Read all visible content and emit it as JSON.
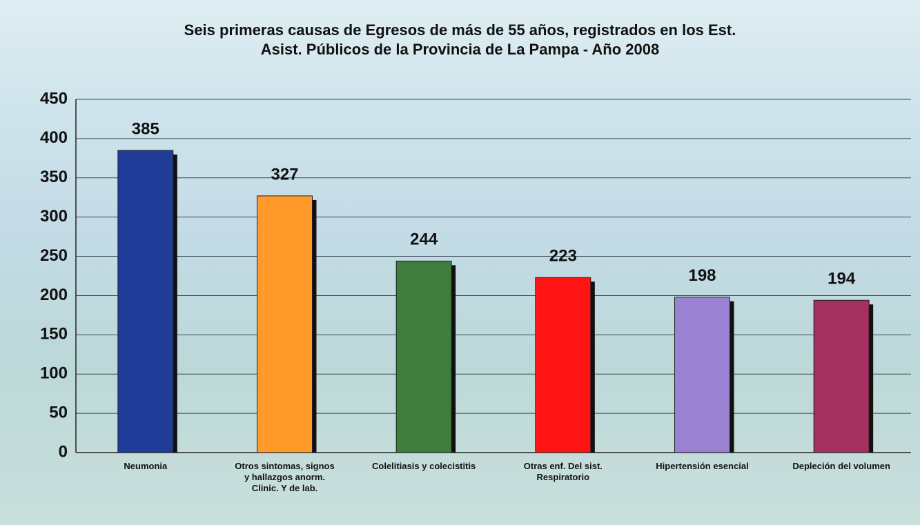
{
  "chart_data": {
    "type": "bar",
    "title": "Seis primeras causas de Egresos de más de 55 años, registrados en los Est.\nAsist. Públicos de la Provincia de La Pampa - Año 2008",
    "categories": [
      "Neumonia",
      "Otros sintomas, signos\ny hallazgos anorm.\nClinic. Y de lab.",
      "Colelitiasis y colecistitis",
      "Otras enf. Del sist.\nRespiratorio",
      "Hipertensión esencial",
      "Depleción del volumen"
    ],
    "values": [
      385,
      327,
      244,
      223,
      198,
      194
    ],
    "colors": [
      "#1f3d98",
      "#ff9a2b",
      "#3f7d3f",
      "#ff1414",
      "#9a82d2",
      "#a3305f"
    ],
    "ylim": [
      0,
      450
    ],
    "yticks": [
      0,
      50,
      100,
      150,
      200,
      250,
      300,
      350,
      400,
      450
    ],
    "grid": true
  }
}
